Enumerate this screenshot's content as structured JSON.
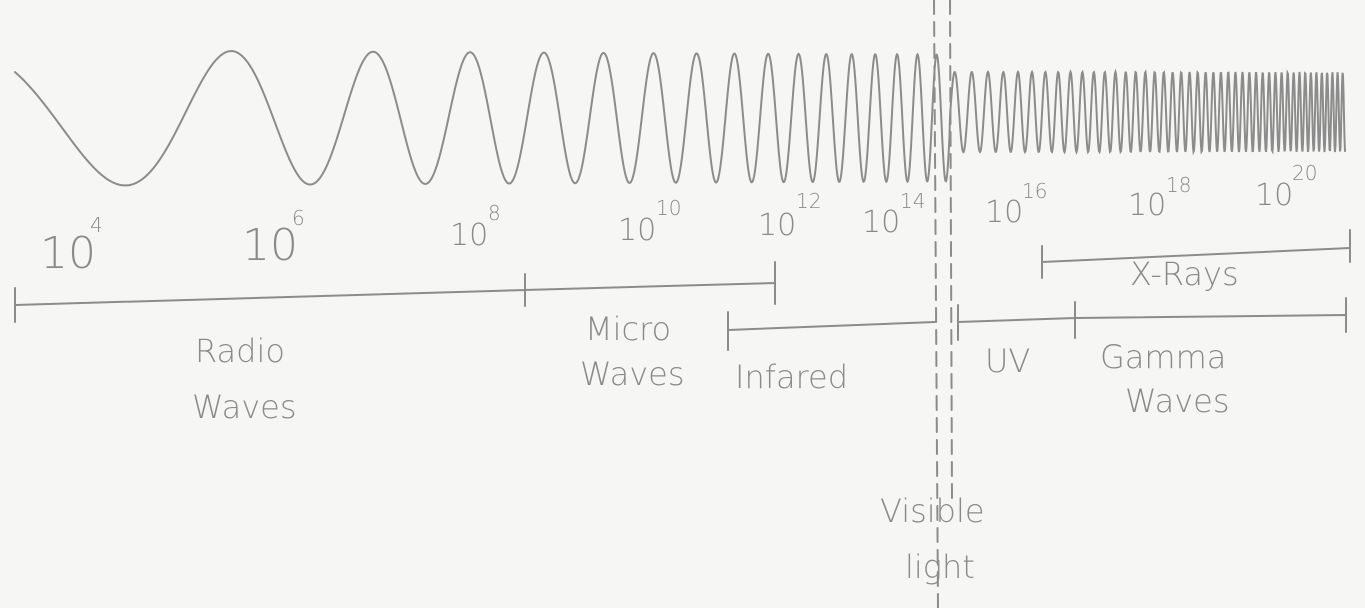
{
  "frequency_labels": [
    {
      "base": "10",
      "exponent": "4"
    },
    {
      "base": "10",
      "exponent": "6"
    },
    {
      "base": "10",
      "exponent": "8"
    },
    {
      "base": "10",
      "exponent": "10"
    },
    {
      "base": "10",
      "exponent": "12"
    },
    {
      "base": "10",
      "exponent": "14"
    },
    {
      "base": "10",
      "exponent": "16"
    },
    {
      "base": "10",
      "exponent": "18"
    },
    {
      "base": "10",
      "exponent": "20"
    }
  ],
  "bands": {
    "radio": [
      "Radio",
      "Waves"
    ],
    "micro": [
      "Micro",
      "Waves"
    ],
    "infrared": "Infared",
    "visible": [
      "Visible",
      "light"
    ],
    "uv": "UV",
    "gamma": [
      "Gamma",
      "Waves"
    ],
    "xrays": "X-Rays"
  }
}
